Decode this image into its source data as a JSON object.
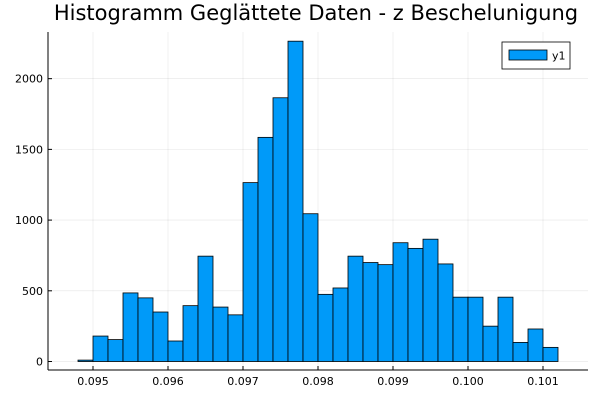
{
  "chart_data": {
    "type": "bar",
    "title": "Histogramm Geglättete Daten - z Beschelunigung",
    "xlabel": "",
    "ylabel": "",
    "bin_width": 0.0002,
    "bin_edges_start": 0.0948,
    "xlim": [
      0.0944,
      0.1016
    ],
    "ylim": [
      -60,
      2330
    ],
    "xticks": [
      0.095,
      0.096,
      0.097,
      0.098,
      0.099,
      0.1,
      0.101
    ],
    "xtick_labels": [
      "0.095",
      "0.096",
      "0.097",
      "0.098",
      "0.099",
      "0.100",
      "0.101"
    ],
    "yticks": [
      0,
      500,
      1000,
      1500,
      2000
    ],
    "ytick_labels": [
      "0",
      "500",
      "1000",
      "1500",
      "2000"
    ],
    "grid": true,
    "legend_position": "top-right",
    "series": [
      {
        "name": "y1",
        "color": "#009af9",
        "values": [
          10,
          180,
          155,
          485,
          450,
          350,
          145,
          395,
          745,
          385,
          330,
          1265,
          1585,
          1865,
          2265,
          1045,
          475,
          520,
          745,
          700,
          685,
          840,
          800,
          865,
          690,
          455,
          455,
          250,
          455,
          135,
          230,
          100
        ]
      }
    ]
  }
}
